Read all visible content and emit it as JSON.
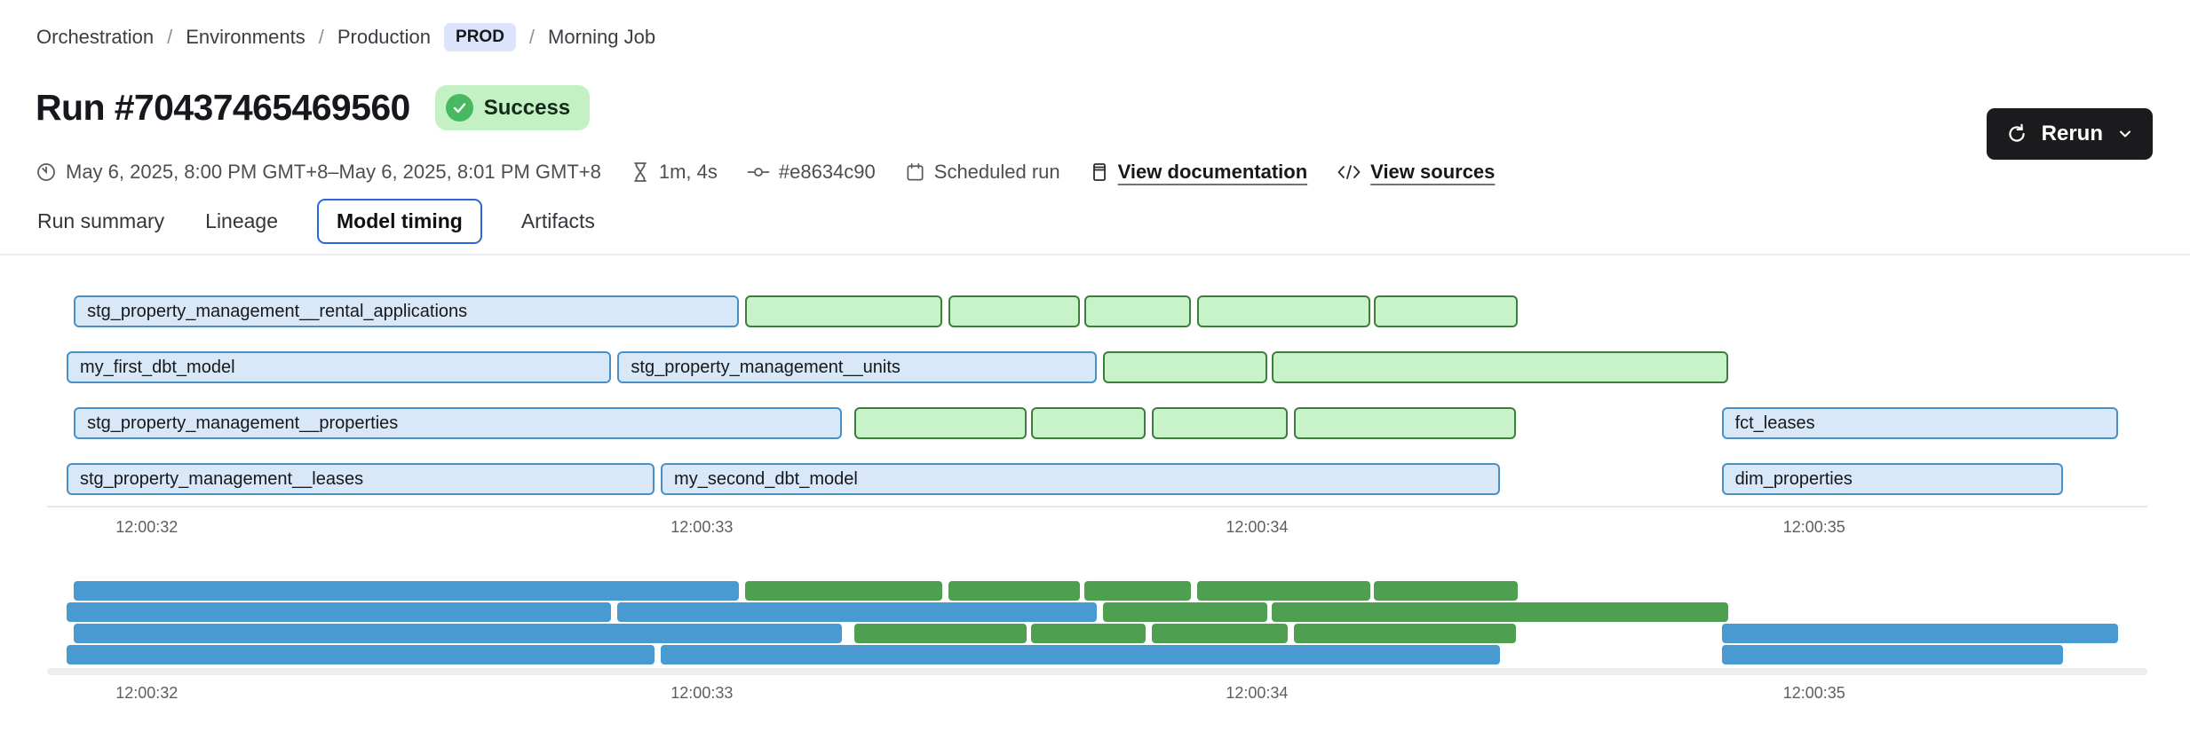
{
  "breadcrumb": {
    "separator": "/",
    "items": [
      "Orchestration",
      "Environments",
      "Production"
    ],
    "env_badge": "PROD",
    "current": "Morning Job"
  },
  "header": {
    "title": "Run #70437465469560",
    "status": "Success"
  },
  "meta": {
    "time_range": "May 6, 2025, 8:00 PM GMT+8–May 6, 2025, 8:01 PM GMT+8",
    "duration": "1m, 4s",
    "commit": "#e8634c90",
    "trigger": "Scheduled run",
    "doc_link": "View documentation",
    "sources_link": "View sources"
  },
  "actions": {
    "rerun_label": "Rerun"
  },
  "tabs": [
    {
      "label": "Run summary",
      "selected": false
    },
    {
      "label": "Lineage",
      "selected": false
    },
    {
      "label": "Model timing",
      "selected": true
    },
    {
      "label": "Artifacts",
      "selected": false
    }
  ],
  "chart_data": {
    "type": "gantt",
    "title": "Model timing",
    "x_axis": {
      "tick_labels": [
        "12:00:32",
        "12:00:33",
        "12:00:34",
        "12:00:35"
      ],
      "tick_pos_pct": [
        3.9,
        30.9,
        57.9,
        85.0
      ]
    },
    "legend": {
      "model_kind_color": "blue outlined = model",
      "test_kind_color": "green outlined = test"
    },
    "rows": [
      {
        "segments": [
          {
            "label": "stg_property_management__rental_applications",
            "kind": "model",
            "start": 0.35,
            "end": 32.7
          },
          {
            "label": "",
            "kind": "test",
            "start": 33.0,
            "end": 42.6
          },
          {
            "label": "",
            "kind": "test",
            "start": 42.9,
            "end": 49.3
          },
          {
            "label": "",
            "kind": "test",
            "start": 49.5,
            "end": 54.7
          },
          {
            "label": "",
            "kind": "test",
            "start": 55.0,
            "end": 63.4
          },
          {
            "label": "",
            "kind": "test",
            "start": 63.6,
            "end": 70.6
          }
        ]
      },
      {
        "segments": [
          {
            "label": "my_first_dbt_model",
            "kind": "model",
            "start": 0.0,
            "end": 26.5
          },
          {
            "label": "stg_property_management__units",
            "kind": "model",
            "start": 26.8,
            "end": 50.1
          },
          {
            "label": "",
            "kind": "test",
            "start": 50.4,
            "end": 58.4
          },
          {
            "label": "",
            "kind": "test",
            "start": 58.6,
            "end": 80.8
          }
        ]
      },
      {
        "segments": [
          {
            "label": "stg_property_management__properties",
            "kind": "model",
            "start": 0.35,
            "end": 37.7
          },
          {
            "label": "",
            "kind": "test",
            "start": 38.3,
            "end": 46.7
          },
          {
            "label": "",
            "kind": "test",
            "start": 46.9,
            "end": 52.5
          },
          {
            "label": "",
            "kind": "test",
            "start": 52.8,
            "end": 59.4
          },
          {
            "label": "",
            "kind": "test",
            "start": 59.7,
            "end": 70.5
          },
          {
            "label": "fct_leases",
            "kind": "model",
            "start": 80.5,
            "end": 99.8
          }
        ]
      },
      {
        "segments": [
          {
            "label": "stg_property_management__leases",
            "kind": "model",
            "start": 0.0,
            "end": 28.6
          },
          {
            "label": "my_second_dbt_model",
            "kind": "model",
            "start": 28.9,
            "end": 69.7
          },
          {
            "label": "dim_properties",
            "kind": "model",
            "start": 80.5,
            "end": 97.1
          }
        ]
      }
    ]
  },
  "colors": {
    "model_fill": "#d8e8f9",
    "model_border": "#4a90c4",
    "test_fill": "#c8f3c8",
    "test_border": "#3e7d3c",
    "minimap_model": "#4a9ad2",
    "minimap_test": "#4f9f50",
    "status_badge_bg": "#c3f1c4",
    "status_icon": "#49b863",
    "env_badge_bg": "#dbe4fa",
    "selected_tab_border": "#2b66e3",
    "rerun_bg": "#1b1b1e"
  }
}
